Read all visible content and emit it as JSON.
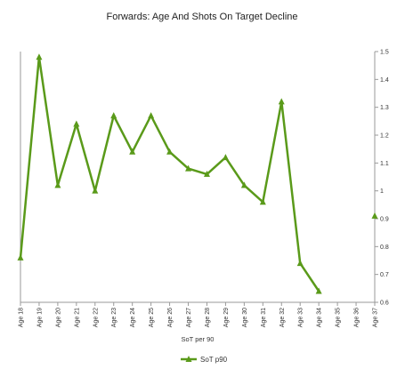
{
  "chart_data": {
    "type": "line",
    "title": "Forwards: Age And Shots On Target Decline",
    "xlabel": "SoT per 90",
    "ylabel": "",
    "categories": [
      "Age 18",
      "Age 19",
      "Age 20",
      "Age 21",
      "Age 22",
      "Age 23",
      "Age 24",
      "Age 25",
      "Age 26",
      "Age 27",
      "Age 28",
      "Age 29",
      "Age 30",
      "Age 31",
      "Age 32",
      "Age 33",
      "Age 34",
      "Age 35",
      "Age 36",
      "Age 37"
    ],
    "ylim": [
      0.6,
      1.5
    ],
    "yticks": [
      "0.6",
      "0.7",
      "0.8",
      "0.9",
      "1",
      "1.1",
      "1.2",
      "1.3",
      "1.4",
      "1.5"
    ],
    "grid": false,
    "legend_position": "bottom",
    "series": [
      {
        "name": "SoT p90",
        "color": "#5a9a1a",
        "values": [
          0.76,
          1.48,
          1.02,
          1.24,
          1.0,
          1.27,
          1.14,
          1.27,
          1.14,
          1.08,
          1.06,
          1.12,
          1.02,
          0.96,
          1.32,
          0.74,
          0.64,
          null,
          null,
          0.91
        ]
      }
    ]
  }
}
